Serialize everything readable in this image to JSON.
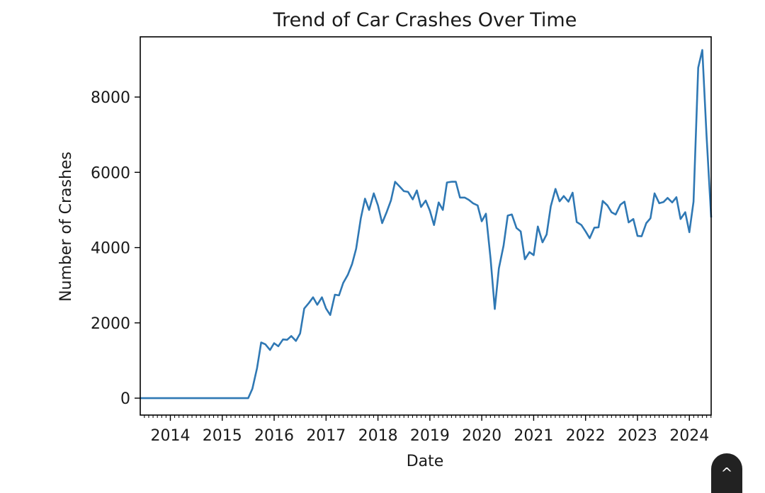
{
  "chart_data": {
    "type": "line",
    "title": "Trend of Car Crashes Over Time",
    "xlabel": "Date",
    "ylabel": "Number of Crashes",
    "xlim": [
      2013.42,
      2024.42
    ],
    "ylim": [
      -450,
      9600
    ],
    "xticks": [
      2014,
      2015,
      2016,
      2017,
      2018,
      2019,
      2020,
      2021,
      2022,
      2023,
      2024
    ],
    "xtick_labels": [
      "2014",
      "2015",
      "2016",
      "2017",
      "2018",
      "2019",
      "2020",
      "2021",
      "2022",
      "2023",
      "2024"
    ],
    "yticks": [
      0,
      2000,
      4000,
      6000,
      8000
    ],
    "ytick_labels": [
      "0",
      "2000",
      "4000",
      "6000",
      "8000"
    ],
    "grid": false,
    "line_color": "#2f78b4",
    "series": [
      {
        "x": [
          2013.42,
          2015.5,
          2015.58,
          2015.67,
          2015.75,
          2015.83,
          2015.92,
          2016.0,
          2016.08,
          2016.17,
          2016.25,
          2016.33,
          2016.42,
          2016.5,
          2016.58,
          2016.67,
          2016.75,
          2016.83,
          2016.92,
          2017.0,
          2017.08,
          2017.17,
          2017.25,
          2017.33,
          2017.42,
          2017.5,
          2017.58,
          2017.67,
          2017.75,
          2017.83,
          2017.92,
          2018.0,
          2018.08,
          2018.17,
          2018.25,
          2018.33,
          2018.42,
          2018.5,
          2018.58,
          2018.67,
          2018.75,
          2018.83,
          2018.92,
          2019.0,
          2019.08,
          2019.17,
          2019.25,
          2019.33,
          2019.42,
          2019.5,
          2019.58,
          2019.67,
          2019.75,
          2019.83,
          2019.92,
          2020.0,
          2020.08,
          2020.17,
          2020.25,
          2020.33,
          2020.42,
          2020.5,
          2020.58,
          2020.67,
          2020.75,
          2020.83,
          2020.92,
          2021.0,
          2021.08,
          2021.17,
          2021.25,
          2021.33,
          2021.42,
          2021.5,
          2021.58,
          2021.67,
          2021.75,
          2021.83,
          2021.92,
          2022.0,
          2022.08,
          2022.17,
          2022.25,
          2022.33,
          2022.42,
          2022.5,
          2022.58,
          2022.67,
          2022.75,
          2022.83,
          2022.92,
          2023.0,
          2023.08,
          2023.17,
          2023.25,
          2023.33,
          2023.42,
          2023.5,
          2023.58,
          2023.67,
          2023.75,
          2023.83,
          2023.92,
          2024.0,
          2024.08,
          2024.17,
          2024.25,
          2024.33,
          2024.42
        ],
        "values": [
          0,
          0,
          250,
          800,
          1480,
          1430,
          1280,
          1460,
          1380,
          1560,
          1550,
          1650,
          1520,
          1720,
          2380,
          2530,
          2680,
          2480,
          2680,
          2380,
          2210,
          2750,
          2730,
          3060,
          3280,
          3560,
          3970,
          4780,
          5300,
          5000,
          5440,
          5120,
          4650,
          4950,
          5250,
          5750,
          5620,
          5500,
          5480,
          5280,
          5520,
          5080,
          5250,
          4980,
          4600,
          5200,
          5000,
          5730,
          5750,
          5750,
          5330,
          5330,
          5270,
          5180,
          5120,
          4700,
          4900,
          3700,
          2370,
          3450,
          4050,
          4850,
          4880,
          4520,
          4430,
          3690,
          3880,
          3800,
          4560,
          4140,
          4350,
          5100,
          5560,
          5230,
          5370,
          5220,
          5460,
          4680,
          4600,
          4430,
          4250,
          4530,
          4540,
          5240,
          5120,
          4940,
          4880,
          5140,
          5220,
          4670,
          4760,
          4310,
          4300,
          4650,
          4780,
          5440,
          5180,
          5210,
          5320,
          5200,
          5340,
          4760,
          4940,
          4410,
          5220,
          8780,
          9250,
          7000,
          4800
        ]
      }
    ]
  },
  "scroll_top": {
    "icon": "chevron-up-icon",
    "glyph": "^"
  }
}
